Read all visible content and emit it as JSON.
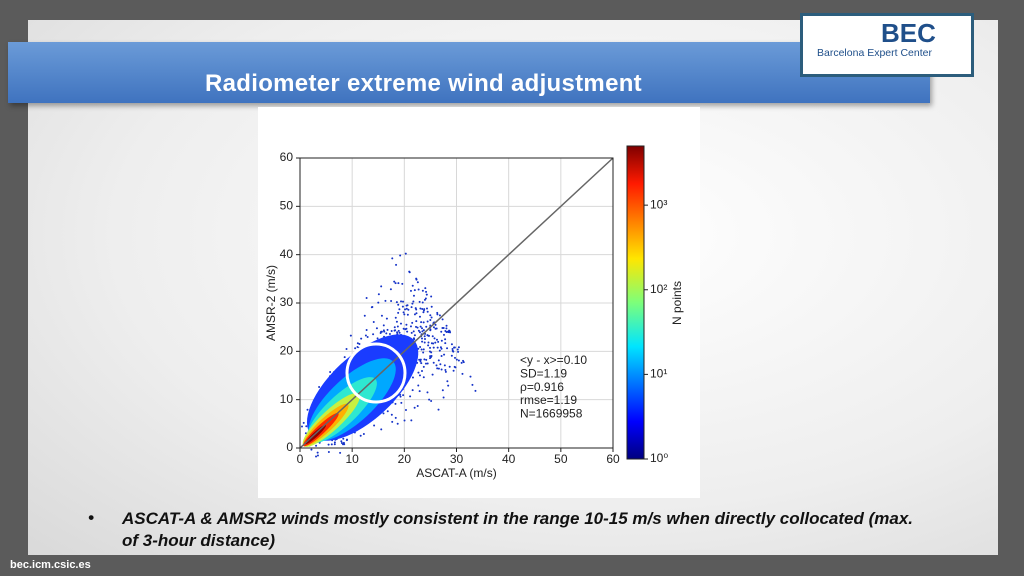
{
  "header": {
    "title": "Radiometer extreme wind adjustment"
  },
  "logo": {
    "name": "BEC",
    "subtitle": "Barcelona Expert Center"
  },
  "chart_data": {
    "type": "scatter",
    "xlabel": "ASCAT-A (m/s)",
    "ylabel": "AMSR-2 (m/s)",
    "xlim": [
      0,
      60
    ],
    "ylim": [
      0,
      60
    ],
    "xticks": [
      0,
      10,
      20,
      30,
      40,
      50,
      60
    ],
    "yticks": [
      0,
      10,
      20,
      30,
      40,
      50,
      60
    ],
    "grid": true,
    "annotations": [
      "<y - x>=0.10",
      "SD=1.19",
      "ρ=0.916",
      "rmse=1.19",
      "N=1669958"
    ],
    "colorbar": {
      "label": "N points",
      "scale": "log",
      "lim": [
        1,
        5000
      ],
      "ticks": [
        {
          "value": 1,
          "label": "10⁰"
        },
        {
          "value": 10,
          "label": "10¹"
        },
        {
          "value": 100,
          "label": "10²"
        },
        {
          "value": 1000,
          "label": "10³"
        }
      ]
    }
  },
  "bullets": [
    "ASCAT-A & AMSR2 winds mostly consistent in the range 10-15 m/s when directly collocated (max. of 3-hour distance)"
  ],
  "footer": "bec.icm.csic.es"
}
